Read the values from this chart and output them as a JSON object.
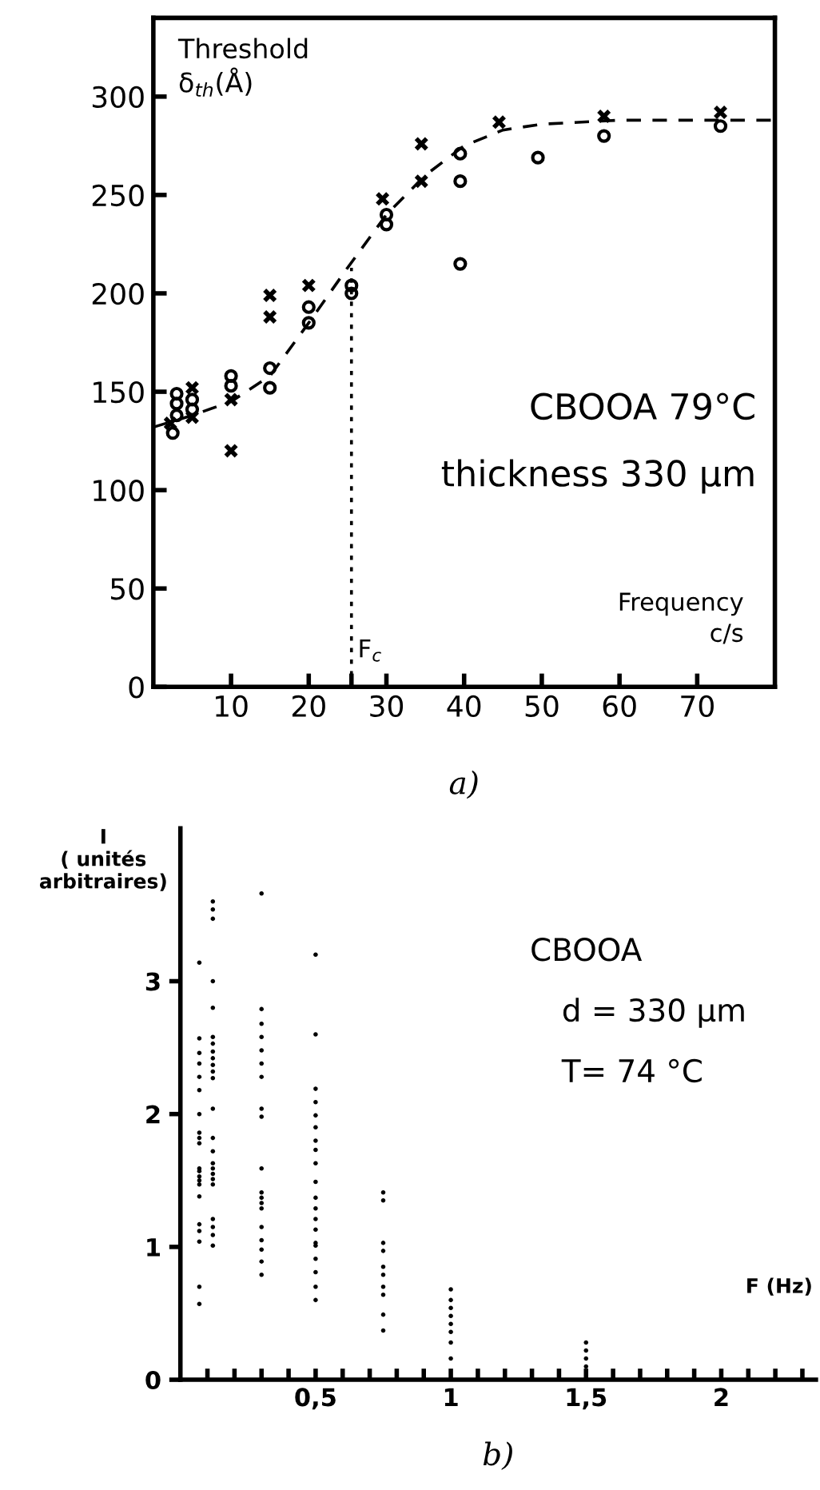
{
  "chart_data": [
    {
      "type": "scatter",
      "ylabel": "Threshold\nδ$_{th}$(Å)",
      "xlabel": "Frequency\nc/s",
      "annotations": [
        "CBOOA 79°C",
        "thickness 330 μm",
        "a)",
        {
          "text": "F$_{c}$",
          "x": 25.5,
          "y": 15
        }
      ],
      "xlim": [
        0,
        80
      ],
      "ylim": [
        0,
        340
      ],
      "xticks": [
        10,
        20,
        {
          "value": 25.5,
          "label": null
        },
        30,
        40,
        50,
        60,
        70
      ],
      "yticks": [
        0,
        50,
        100,
        150,
        200,
        250,
        300
      ],
      "grid": false,
      "legend": false,
      "series": [
        {
          "marker": "circle",
          "color": "#000000",
          "x": [
            2.5,
            3,
            3,
            3,
            5,
            5,
            10,
            10,
            15,
            15,
            20,
            20,
            25.5,
            25.5,
            30,
            30,
            39.5,
            39.5,
            39.5,
            49.5,
            58,
            73
          ],
          "values": [
            129,
            149,
            144,
            138,
            146,
            141,
            158,
            153,
            162,
            152,
            193,
            185,
            204,
            200,
            240,
            235,
            271,
            257,
            215,
            269,
            280,
            285
          ]
        },
        {
          "marker": "cross",
          "color": "#000000",
          "x": [
            2.2,
            5,
            5,
            10,
            10,
            15,
            15,
            20,
            29.5,
            34.5,
            34.5,
            44.5,
            58,
            73
          ],
          "values": [
            134,
            152,
            137,
            146,
            120,
            199,
            188,
            204,
            248,
            276,
            257,
            287,
            290,
            292
          ]
        },
        {
          "type": "line",
          "line_style": "dashed",
          "color": "#000000",
          "x": [
            0,
            5,
            10,
            15,
            20,
            25,
            30,
            35,
            40,
            45,
            50,
            60,
            80
          ],
          "values": [
            132,
            138,
            145,
            158,
            185,
            213,
            240,
            260,
            275,
            283,
            286,
            288,
            288
          ]
        },
        {
          "type": "line",
          "line_style": "dotted",
          "color": "#000000",
          "x": [
            25.5,
            25.5
          ],
          "values": [
            0,
            213
          ]
        }
      ]
    },
    {
      "type": "scatter",
      "ylabel": "I\n( unités\narbitraires)",
      "xlabel": "F (Hz)",
      "annotations": [
        "CBOOA",
        "d = 330 μm",
        "T= 74 °C",
        "b)"
      ],
      "xlim": [
        0,
        2.35
      ],
      "ylim": [
        0,
        4.15
      ],
      "xticks": [
        {
          "value": 0.1,
          "label": null
        },
        {
          "value": 0.2,
          "label": null
        },
        {
          "value": 0.3,
          "label": null
        },
        {
          "value": 0.4,
          "label": null
        },
        {
          "value": 0.5,
          "label": "0,5"
        },
        {
          "value": 0.6,
          "label": null
        },
        {
          "value": 0.7,
          "label": null
        },
        {
          "value": 0.8,
          "label": null
        },
        {
          "value": 0.9,
          "label": null
        },
        {
          "value": 1,
          "label": "1"
        },
        {
          "value": 1.1,
          "label": null
        },
        {
          "value": 1.2,
          "label": null
        },
        {
          "value": 1.3,
          "label": null
        },
        {
          "value": 1.4,
          "label": null
        },
        {
          "value": 1.5,
          "label": "1,5"
        },
        {
          "value": 1.6,
          "label": null
        },
        {
          "value": 1.7,
          "label": null
        },
        {
          "value": 1.8,
          "label": null
        },
        {
          "value": 1.9,
          "label": null
        },
        {
          "value": 2,
          "label": "2"
        },
        {
          "value": 2.1,
          "label": null
        },
        {
          "value": 2.2,
          "label": null
        },
        {
          "value": 2.3,
          "label": null
        }
      ],
      "yticks": [
        0,
        1,
        2,
        3
      ],
      "grid": false,
      "legend": false,
      "series": [
        {
          "marker": "circle",
          "color": "#000000",
          "x": [
            0.07,
            0.07,
            0.07,
            0.07,
            0.07,
            0.07,
            0.07,
            0.07,
            0.07,
            0.07,
            0.07,
            0.07,
            0.07,
            0.07,
            0.07,
            0.07,
            0.07,
            0.07,
            0.07,
            0.07,
            0.07,
            0.12,
            0.12,
            0.12,
            0.12,
            0.12,
            0.12,
            0.12,
            0.12,
            0.12,
            0.12,
            0.12,
            0.12,
            0.12,
            0.12,
            0.12,
            0.12,
            0.12,
            0.12,
            0.12,
            0.12,
            0.12,
            0.12,
            0.12,
            0.12,
            0.3,
            0.3,
            0.3,
            0.3,
            0.3,
            0.3,
            0.3,
            0.3,
            0.3,
            0.3,
            0.3,
            0.3,
            0.3,
            0.3,
            0.3,
            0.3,
            0.3,
            0.3,
            0.3,
            0.5,
            0.5,
            0.5,
            0.5,
            0.5,
            0.5,
            0.5,
            0.5,
            0.5,
            0.5,
            0.5,
            0.5,
            0.5,
            0.5,
            0.5,
            0.5,
            0.5,
            0.5,
            0.5,
            0.5,
            0.75,
            0.75,
            0.75,
            0.75,
            0.75,
            0.75,
            0.75,
            0.75,
            0.75,
            0.75,
            1,
            1,
            1,
            1,
            1,
            1,
            1,
            1,
            1.5,
            1.5,
            1.5,
            1.5
          ],
          "values": [
            3.14,
            2.57,
            2.46,
            2.38,
            2.28,
            2.18,
            2.0,
            1.86,
            1.82,
            1.78,
            1.59,
            1.57,
            1.53,
            1.5,
            1.47,
            1.38,
            1.17,
            1.12,
            1.04,
            0.7,
            0.57,
            3.6,
            3.54,
            3.47,
            3.0,
            2.8,
            2.58,
            2.53,
            2.47,
            2.42,
            2.37,
            2.32,
            2.27,
            2.04,
            1.82,
            1.72,
            1.63,
            1.59,
            1.55,
            1.51,
            1.47,
            1.21,
            1.15,
            1.09,
            1.01,
            3.66,
            2.79,
            2.68,
            2.58,
            2.48,
            2.38,
            2.28,
            2.04,
            1.98,
            1.59,
            1.41,
            1.37,
            1.33,
            1.29,
            1.15,
            1.05,
            0.98,
            0.89,
            0.79,
            3.2,
            2.6,
            2.19,
            2.09,
            1.99,
            1.9,
            1.8,
            1.73,
            1.63,
            1.49,
            1.37,
            1.29,
            1.21,
            1.13,
            1.03,
            0.91,
            0.81,
            0.7,
            0.6,
            1.01,
            1.41,
            1.35,
            1.03,
            0.97,
            0.85,
            0.79,
            0.7,
            0.64,
            0.49,
            0.37,
            0.68,
            0.6,
            0.54,
            0.48,
            0.42,
            0.36,
            0.28,
            0.16,
            0.28,
            0.22,
            0.16,
            0.1
          ]
        }
      ]
    }
  ]
}
